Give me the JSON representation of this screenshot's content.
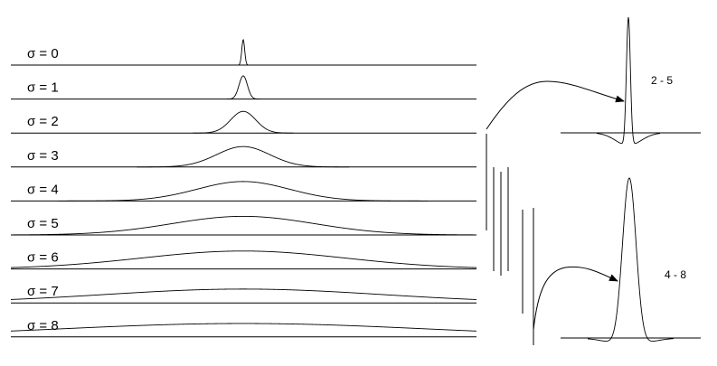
{
  "scales": [
    {
      "label": "σ = 0",
      "sigma": 0
    },
    {
      "label": "σ = 1",
      "sigma": 1
    },
    {
      "label": "σ = 2",
      "sigma": 2
    },
    {
      "label": "σ = 3",
      "sigma": 3
    },
    {
      "label": "σ = 4",
      "sigma": 4
    },
    {
      "label": "σ = 5",
      "sigma": 5
    },
    {
      "label": "σ = 6",
      "sigma": 6
    },
    {
      "label": "σ = 7",
      "sigma": 7
    },
    {
      "label": "σ = 8",
      "sigma": 8
    }
  ],
  "differences": [
    {
      "label": "2 - 5"
    },
    {
      "label": "4 - 8"
    }
  ]
}
